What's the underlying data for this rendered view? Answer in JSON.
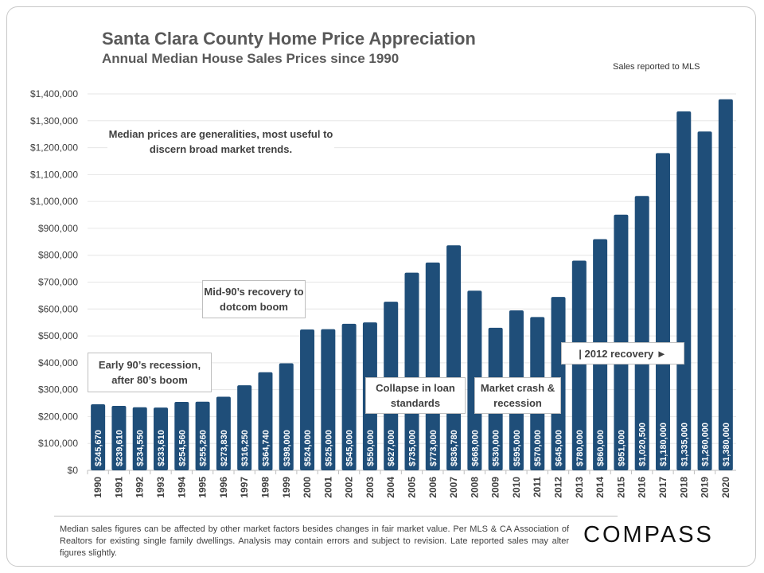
{
  "header": {
    "title": "Santa Clara County Home Price Appreciation",
    "subtitle": "Annual Median House Sales Prices since 1990",
    "source_note": "Sales reported to MLS"
  },
  "annotations": {
    "generalities": "Median prices are generalities, most useful to discern broad market trends.",
    "early90s": "Early 90’s recession, after 80’s boom",
    "mid90s": "Mid-90’s recovery to dotcom boom",
    "collapse": "Collapse in loan standards",
    "crash": "Market crash & recession",
    "recovery2012": "| 2012 recovery ►"
  },
  "footer": {
    "disclaimer": "Median sales figures can be affected by other market factors besides changes in fair market value. Per MLS & CA Association of Realtors for existing single family dwellings. Analysis may contain errors and subject to revision. Late reported sales may alter figures slightly.",
    "logo": "COMPASS"
  },
  "chart_data": {
    "type": "bar",
    "title": "Santa Clara County Home Price Appreciation",
    "subtitle": "Annual Median House Sales Prices since 1990",
    "xlabel": "",
    "ylabel": "",
    "ylim": [
      0,
      1400000
    ],
    "grid": true,
    "bar_color": "#1f4e79",
    "categories": [
      "1990",
      "1991",
      "1992",
      "1993",
      "1994",
      "1995",
      "1996",
      "1997",
      "1998",
      "1999",
      "2000",
      "2001",
      "2002",
      "2003",
      "2004",
      "2005",
      "2006",
      "2007",
      "2008",
      "2009",
      "2010",
      "2011",
      "2012",
      "2013",
      "2014",
      "2015",
      "2016",
      "2017",
      "2018",
      "2019",
      "2020"
    ],
    "values": [
      245670,
      239610,
      234550,
      233610,
      254560,
      255260,
      273830,
      316250,
      364740,
      398000,
      524000,
      525000,
      545000,
      550000,
      627000,
      735000,
      773000,
      836780,
      668000,
      530000,
      595000,
      570000,
      645000,
      780000,
      860000,
      951000,
      1020500,
      1180000,
      1335000,
      1260000,
      1380000
    ],
    "data_labels": [
      "$245,670",
      "$239,610",
      "$234,550",
      "$233,610",
      "$254,560",
      "$255,260",
      "$273,830",
      "$316,250",
      "$364,740",
      "$398,000",
      "$524,000",
      "$525,000",
      "$545,000",
      "$550,000",
      "$627,000",
      "$735,000",
      "$773,000",
      "$836,780",
      "$668,000",
      "$530,000",
      "$595,000",
      "$570,000",
      "$645,000",
      "$780,000",
      "$860,000",
      "$951,000",
      "$1,020,500",
      "$1,180,000",
      "$1,335,000",
      "$1,260,000",
      "$1,380,000"
    ],
    "y_ticks": [
      "$0",
      "$100,000",
      "$200,000",
      "$300,000",
      "$400,000",
      "$500,000",
      "$600,000",
      "$700,000",
      "$800,000",
      "$900,000",
      "$1,000,000",
      "$1,100,000",
      "$1,200,000",
      "$1,300,000",
      "$1,400,000"
    ]
  }
}
